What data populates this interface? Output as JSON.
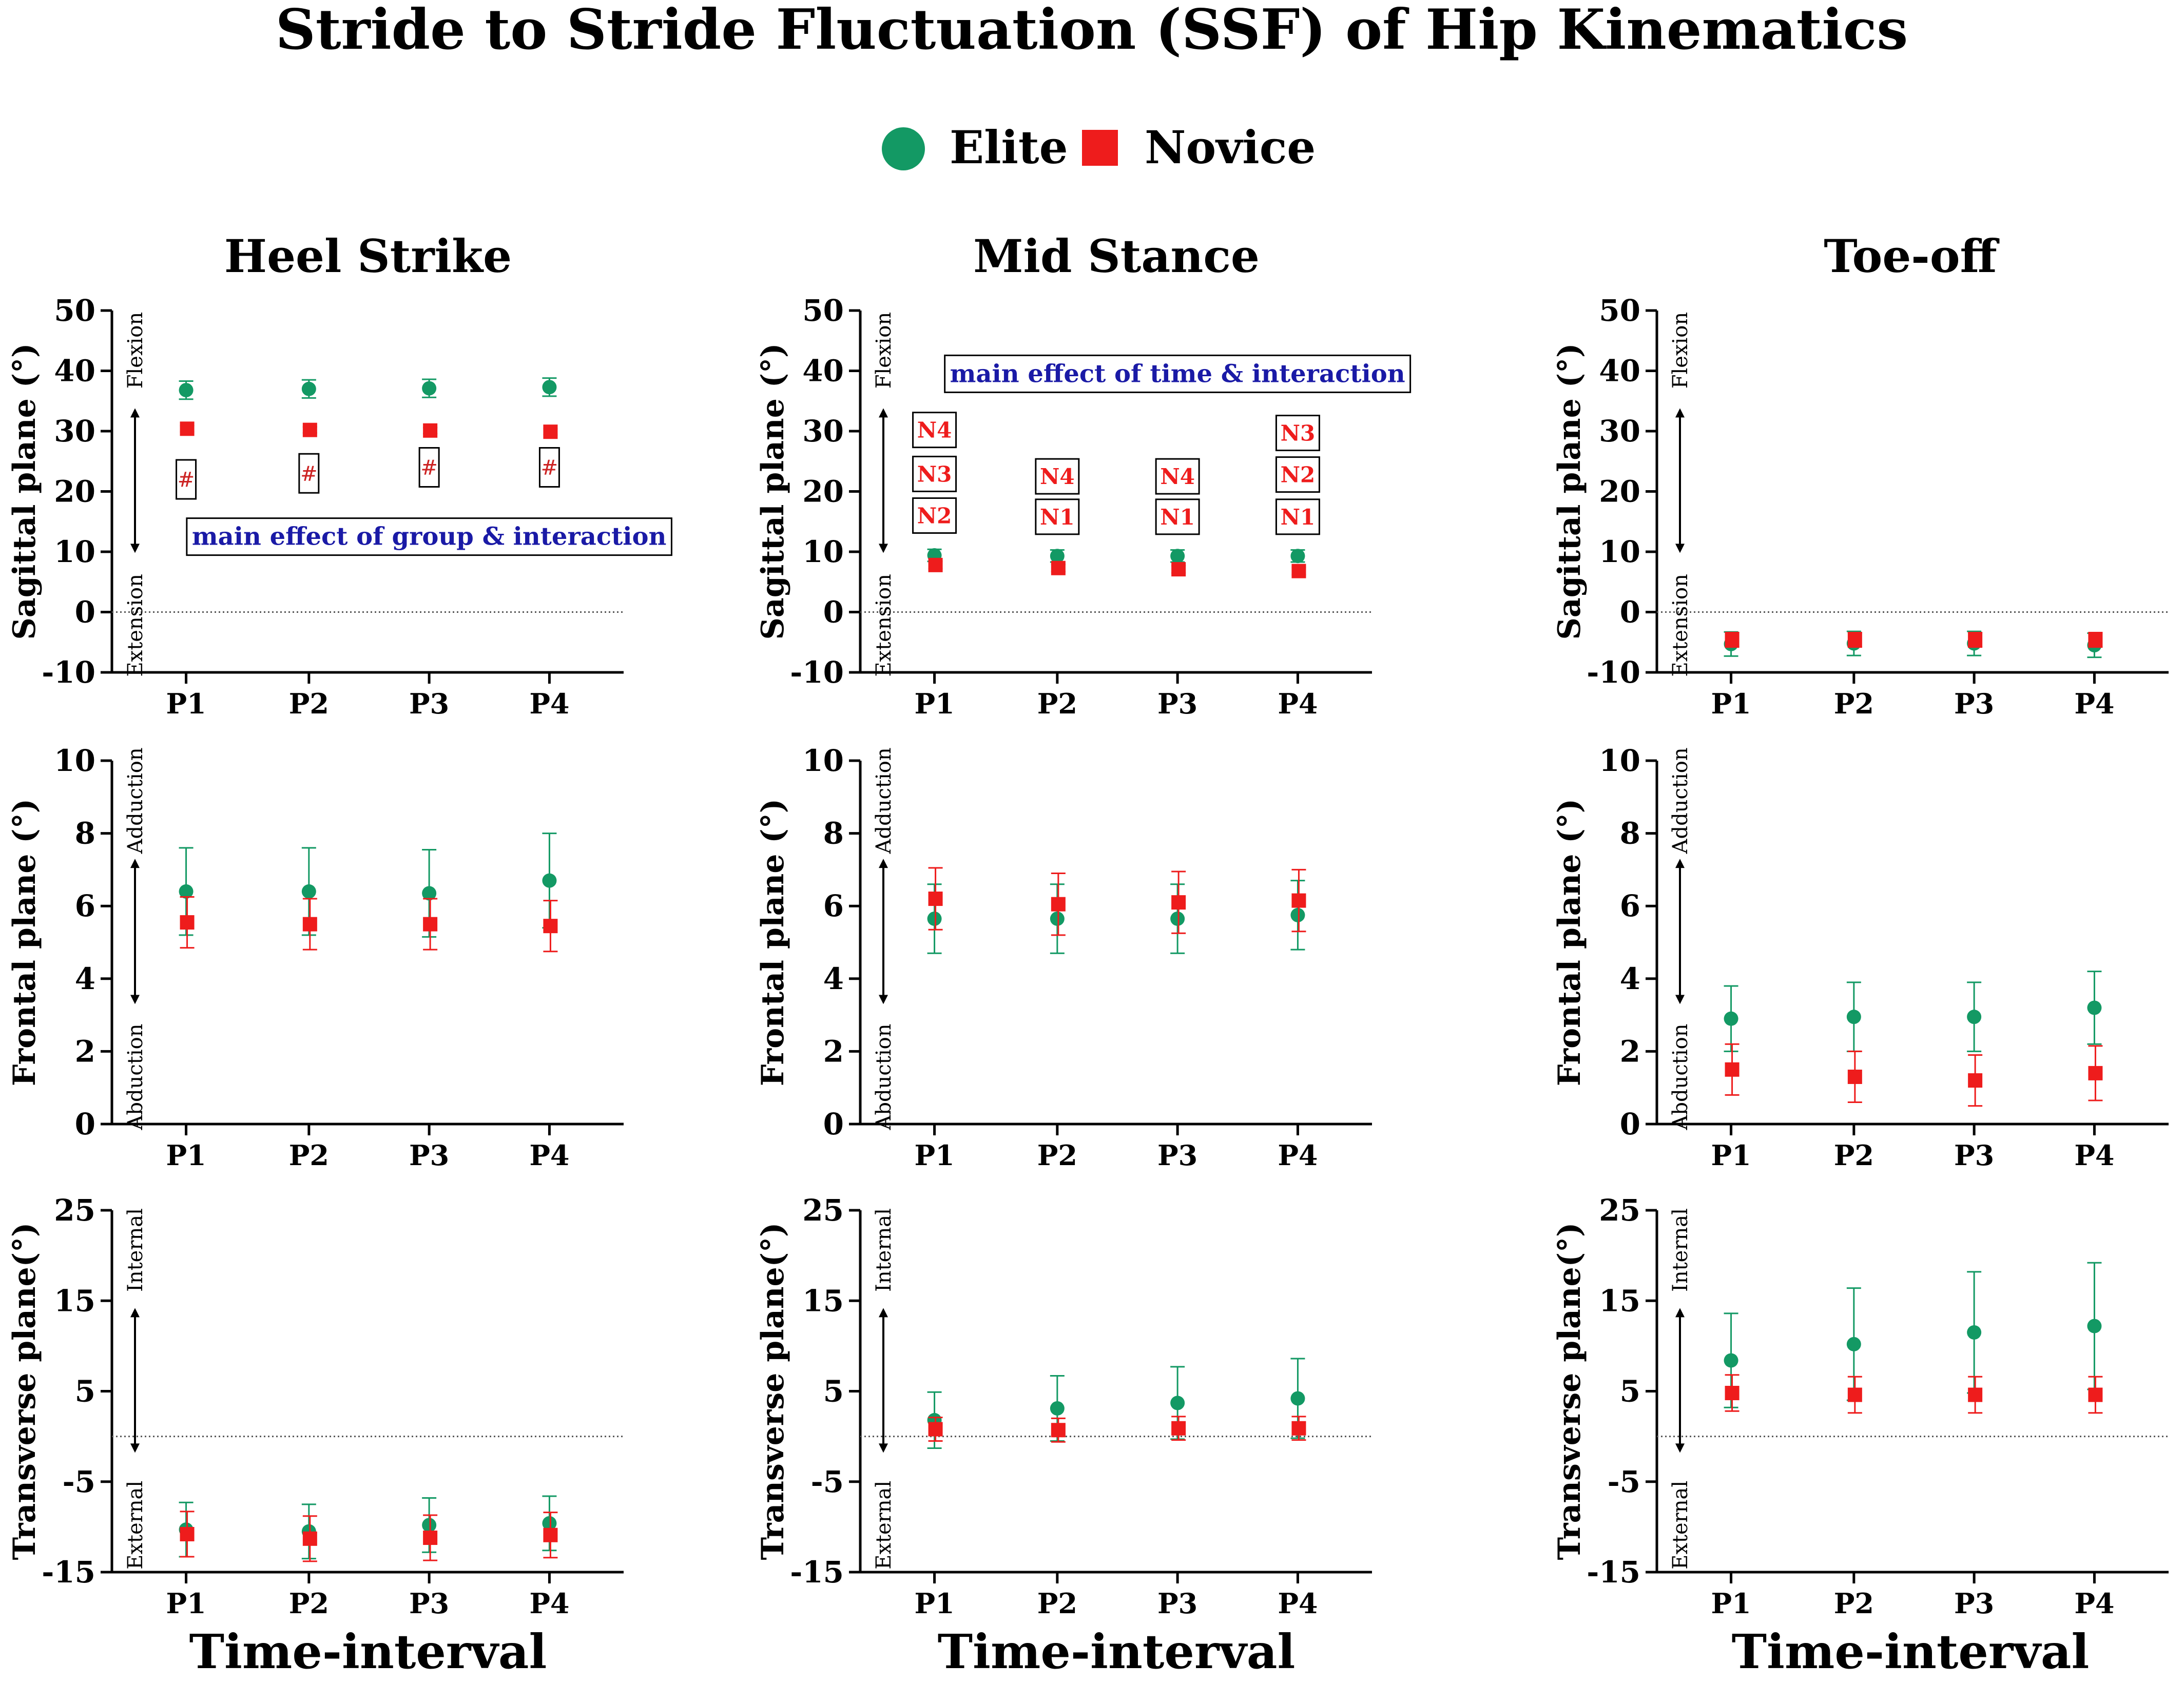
{
  "figure": {
    "title": "Stride to Stride Fluctuation (SSF) of Hip Kinematics",
    "legend": [
      {
        "label": "Elite",
        "color": "#139964",
        "marker": "circle"
      },
      {
        "label": "Novice",
        "color": "#ee1c1c",
        "marker": "square"
      }
    ],
    "column_titles": [
      "Heel Strike",
      "Mid Stance",
      "Toe-off"
    ],
    "xlabel": "Time-interval"
  },
  "chart_data": [
    {
      "type": "scatter",
      "phase": "Heel Strike",
      "plane": "Sagittal",
      "categories": [
        "P1",
        "P2",
        "P3",
        "P4"
      ],
      "ylabel": "Sagittal plane (°)",
      "ylim": [
        -10,
        50
      ],
      "yticks": [
        -10,
        0,
        10,
        20,
        30,
        40,
        50
      ],
      "zero_line": 0,
      "direction_labels": {
        "top": "Flexion",
        "bottom": "Extension"
      },
      "series": [
        {
          "name": "Elite",
          "values": [
            36.8,
            37.0,
            37.1,
            37.3
          ],
          "err_up": [
            1.5,
            1.5,
            1.5,
            1.5
          ],
          "err_down": [
            1.5,
            1.5,
            1.5,
            1.5
          ]
        },
        {
          "name": "Novice",
          "values": [
            30.4,
            30.2,
            30.1,
            29.9
          ],
          "err_up": [
            0.5,
            0.5,
            0.5,
            0.5
          ],
          "err_down": [
            0.5,
            0.5,
            0.5,
            0.5
          ]
        }
      ],
      "annotations": [
        {
          "text": "#",
          "x": "P1",
          "y": 22,
          "style": "hash"
        },
        {
          "text": "#",
          "x": "P2",
          "y": 23,
          "style": "hash"
        },
        {
          "text": "#",
          "x": "P3",
          "y": 24,
          "style": "hash"
        },
        {
          "text": "#",
          "x": "P4",
          "y": 24,
          "style": "hash"
        },
        {
          "text": "main effect of group & interaction",
          "x": "P3",
          "y": 12.5,
          "style": "blue"
        }
      ]
    },
    {
      "type": "scatter",
      "phase": "Mid Stance",
      "plane": "Sagittal",
      "categories": [
        "P1",
        "P2",
        "P3",
        "P4"
      ],
      "ylabel": "Sagittal plane (°)",
      "ylim": [
        -10,
        50
      ],
      "yticks": [
        -10,
        0,
        10,
        20,
        30,
        40,
        50
      ],
      "zero_line": 0,
      "direction_labels": {
        "top": "Flexion",
        "bottom": "Extension"
      },
      "series": [
        {
          "name": "Elite",
          "values": [
            9.4,
            9.3,
            9.3,
            9.3
          ],
          "err_up": [
            1.0,
            1.0,
            1.0,
            1.0
          ],
          "err_down": [
            1.0,
            1.0,
            1.0,
            1.0
          ]
        },
        {
          "name": "Novice",
          "values": [
            7.8,
            7.3,
            7.1,
            6.8
          ],
          "err_up": [
            0.6,
            0.6,
            0.6,
            0.6
          ],
          "err_down": [
            0.6,
            0.6,
            0.6,
            0.6
          ]
        }
      ],
      "annotations": [
        {
          "text": "N4",
          "x": "P1",
          "y": 30.2,
          "style": "red"
        },
        {
          "text": "N3",
          "x": "P1",
          "y": 22.9,
          "style": "red"
        },
        {
          "text": "N2",
          "x": "P1",
          "y": 16.0,
          "style": "red"
        },
        {
          "text": "N4",
          "x": "P2",
          "y": 22.5,
          "style": "red"
        },
        {
          "text": "N1",
          "x": "P2",
          "y": 15.8,
          "style": "red"
        },
        {
          "text": "N4",
          "x": "P3",
          "y": 22.5,
          "style": "red"
        },
        {
          "text": "N1",
          "x": "P3",
          "y": 15.8,
          "style": "red"
        },
        {
          "text": "N3",
          "x": "P4",
          "y": 29.7,
          "style": "red"
        },
        {
          "text": "N2",
          "x": "P4",
          "y": 22.8,
          "style": "red"
        },
        {
          "text": "N1",
          "x": "P4",
          "y": 15.8,
          "style": "red"
        },
        {
          "text": "main effect of time & interaction",
          "x": "P3",
          "y": 39.5,
          "style": "blue"
        }
      ]
    },
    {
      "type": "scatter",
      "phase": "Toe-off",
      "plane": "Sagittal",
      "categories": [
        "P1",
        "P2",
        "P3",
        "P4"
      ],
      "ylabel": "Sagittal plane (°)",
      "ylim": [
        -10,
        50
      ],
      "yticks": [
        -10,
        0,
        10,
        20,
        30,
        40,
        50
      ],
      "zero_line": 0,
      "direction_labels": {
        "top": "Flexion",
        "bottom": "Extension"
      },
      "series": [
        {
          "name": "Elite",
          "values": [
            -5.3,
            -5.2,
            -5.2,
            -5.5
          ],
          "err_up": [
            2.0,
            2.0,
            2.0,
            2.0
          ],
          "err_down": [
            2.0,
            2.0,
            2.0,
            2.0
          ]
        },
        {
          "name": "Novice",
          "values": [
            -4.6,
            -4.6,
            -4.6,
            -4.6
          ],
          "err_up": [
            1.2,
            1.2,
            1.2,
            1.2
          ],
          "err_down": [
            1.2,
            1.2,
            1.2,
            1.2
          ]
        }
      ],
      "annotations": []
    },
    {
      "type": "scatter",
      "phase": "Heel Strike",
      "plane": "Frontal",
      "categories": [
        "P1",
        "P2",
        "P3",
        "P4"
      ],
      "ylabel": "Frontal plane (°)",
      "ylim": [
        0,
        10
      ],
      "yticks": [
        0,
        2,
        4,
        6,
        8,
        10
      ],
      "zero_line": null,
      "direction_labels": {
        "top": "Adduction",
        "bottom": "Abduction"
      },
      "series": [
        {
          "name": "Elite",
          "values": [
            6.4,
            6.4,
            6.35,
            6.7
          ],
          "err_up": [
            1.2,
            1.2,
            1.2,
            1.3
          ],
          "err_down": [
            1.2,
            1.2,
            1.2,
            1.3
          ]
        },
        {
          "name": "Novice",
          "values": [
            5.55,
            5.5,
            5.5,
            5.45
          ],
          "err_up": [
            0.7,
            0.7,
            0.7,
            0.7
          ],
          "err_down": [
            0.7,
            0.7,
            0.7,
            0.7
          ]
        }
      ],
      "annotations": []
    },
    {
      "type": "scatter",
      "phase": "Mid Stance",
      "plane": "Frontal",
      "categories": [
        "P1",
        "P2",
        "P3",
        "P4"
      ],
      "ylabel": "Frontal plane (°)",
      "ylim": [
        0,
        10
      ],
      "yticks": [
        0,
        2,
        4,
        6,
        8,
        10
      ],
      "zero_line": null,
      "direction_labels": {
        "top": "Adduction",
        "bottom": "Abduction"
      },
      "series": [
        {
          "name": "Elite",
          "values": [
            5.65,
            5.65,
            5.65,
            5.75
          ],
          "err_up": [
            0.95,
            0.95,
            0.95,
            0.95
          ],
          "err_down": [
            0.95,
            0.95,
            0.95,
            0.95
          ]
        },
        {
          "name": "Novice",
          "values": [
            6.2,
            6.05,
            6.1,
            6.15
          ],
          "err_up": [
            0.85,
            0.85,
            0.85,
            0.85
          ],
          "err_down": [
            0.85,
            0.85,
            0.85,
            0.85
          ]
        }
      ],
      "annotations": []
    },
    {
      "type": "scatter",
      "phase": "Toe-off",
      "plane": "Frontal",
      "categories": [
        "P1",
        "P2",
        "P3",
        "P4"
      ],
      "ylabel": "Frontal plane (°)",
      "ylim": [
        0,
        10
      ],
      "yticks": [
        0,
        2,
        4,
        6,
        8,
        10
      ],
      "zero_line": null,
      "direction_labels": {
        "top": "Adduction",
        "bottom": "Abduction"
      },
      "series": [
        {
          "name": "Elite",
          "values": [
            2.9,
            2.95,
            2.95,
            3.2
          ],
          "err_up": [
            0.9,
            0.95,
            0.95,
            1.0
          ],
          "err_down": [
            0.9,
            0.95,
            0.95,
            1.0
          ]
        },
        {
          "name": "Novice",
          "values": [
            1.5,
            1.3,
            1.2,
            1.4
          ],
          "err_up": [
            0.7,
            0.7,
            0.7,
            0.75
          ],
          "err_down": [
            0.7,
            0.7,
            0.7,
            0.75
          ]
        }
      ],
      "annotations": []
    },
    {
      "type": "scatter",
      "phase": "Heel Strike",
      "plane": "Transverse",
      "categories": [
        "P1",
        "P2",
        "P3",
        "P4"
      ],
      "ylabel": "Transverse plane(°)",
      "ylim": [
        -15,
        25
      ],
      "yticks": [
        -15,
        -5,
        5,
        15,
        25
      ],
      "zero_line": 0,
      "direction_labels": {
        "top": "Internal",
        "bottom": "External"
      },
      "series": [
        {
          "name": "Elite",
          "values": [
            -10.3,
            -10.5,
            -9.8,
            -9.6
          ],
          "err_up": [
            3.0,
            3.0,
            3.0,
            3.0
          ],
          "err_down": [
            3.0,
            3.0,
            3.0,
            3.0
          ]
        },
        {
          "name": "Novice",
          "values": [
            -10.8,
            -11.3,
            -11.2,
            -10.9
          ],
          "err_up": [
            2.5,
            2.5,
            2.5,
            2.5
          ],
          "err_down": [
            2.5,
            2.5,
            2.5,
            2.5
          ]
        }
      ],
      "annotations": []
    },
    {
      "type": "scatter",
      "phase": "Mid Stance",
      "plane": "Transverse",
      "categories": [
        "P1",
        "P2",
        "P3",
        "P4"
      ],
      "ylabel": "Transverse plane(°)",
      "ylim": [
        -15,
        25
      ],
      "yticks": [
        -15,
        -5,
        5,
        15,
        25
      ],
      "zero_line": 0,
      "direction_labels": {
        "top": "Internal",
        "bottom": "External"
      },
      "series": [
        {
          "name": "Elite",
          "values": [
            1.8,
            3.1,
            3.7,
            4.2
          ],
          "err_up": [
            3.1,
            3.6,
            4.0,
            4.4
          ],
          "err_down": [
            3.1,
            3.6,
            4.0,
            4.4
          ]
        },
        {
          "name": "Novice",
          "values": [
            0.8,
            0.7,
            0.9,
            0.9
          ],
          "err_up": [
            1.3,
            1.3,
            1.3,
            1.3
          ],
          "err_down": [
            1.3,
            1.3,
            1.3,
            1.3
          ]
        }
      ],
      "annotations": []
    },
    {
      "type": "scatter",
      "phase": "Toe-off",
      "plane": "Transverse",
      "categories": [
        "P1",
        "P2",
        "P3",
        "P4"
      ],
      "ylabel": "Transverse plane(°)",
      "ylim": [
        -15,
        25
      ],
      "yticks": [
        -15,
        -5,
        5,
        15,
        25
      ],
      "zero_line": 0,
      "direction_labels": {
        "top": "Internal",
        "bottom": "External"
      },
      "series": [
        {
          "name": "Elite",
          "values": [
            8.4,
            10.2,
            11.5,
            12.2
          ],
          "err_up": [
            5.2,
            6.2,
            6.7,
            7.0
          ],
          "err_down": [
            5.2,
            6.2,
            6.7,
            7.0
          ]
        },
        {
          "name": "Novice",
          "values": [
            4.8,
            4.6,
            4.6,
            4.6
          ],
          "err_up": [
            2.0,
            2.0,
            2.0,
            2.0
          ],
          "err_down": [
            2.0,
            2.0,
            2.0,
            2.0
          ]
        }
      ],
      "annotations": []
    }
  ]
}
